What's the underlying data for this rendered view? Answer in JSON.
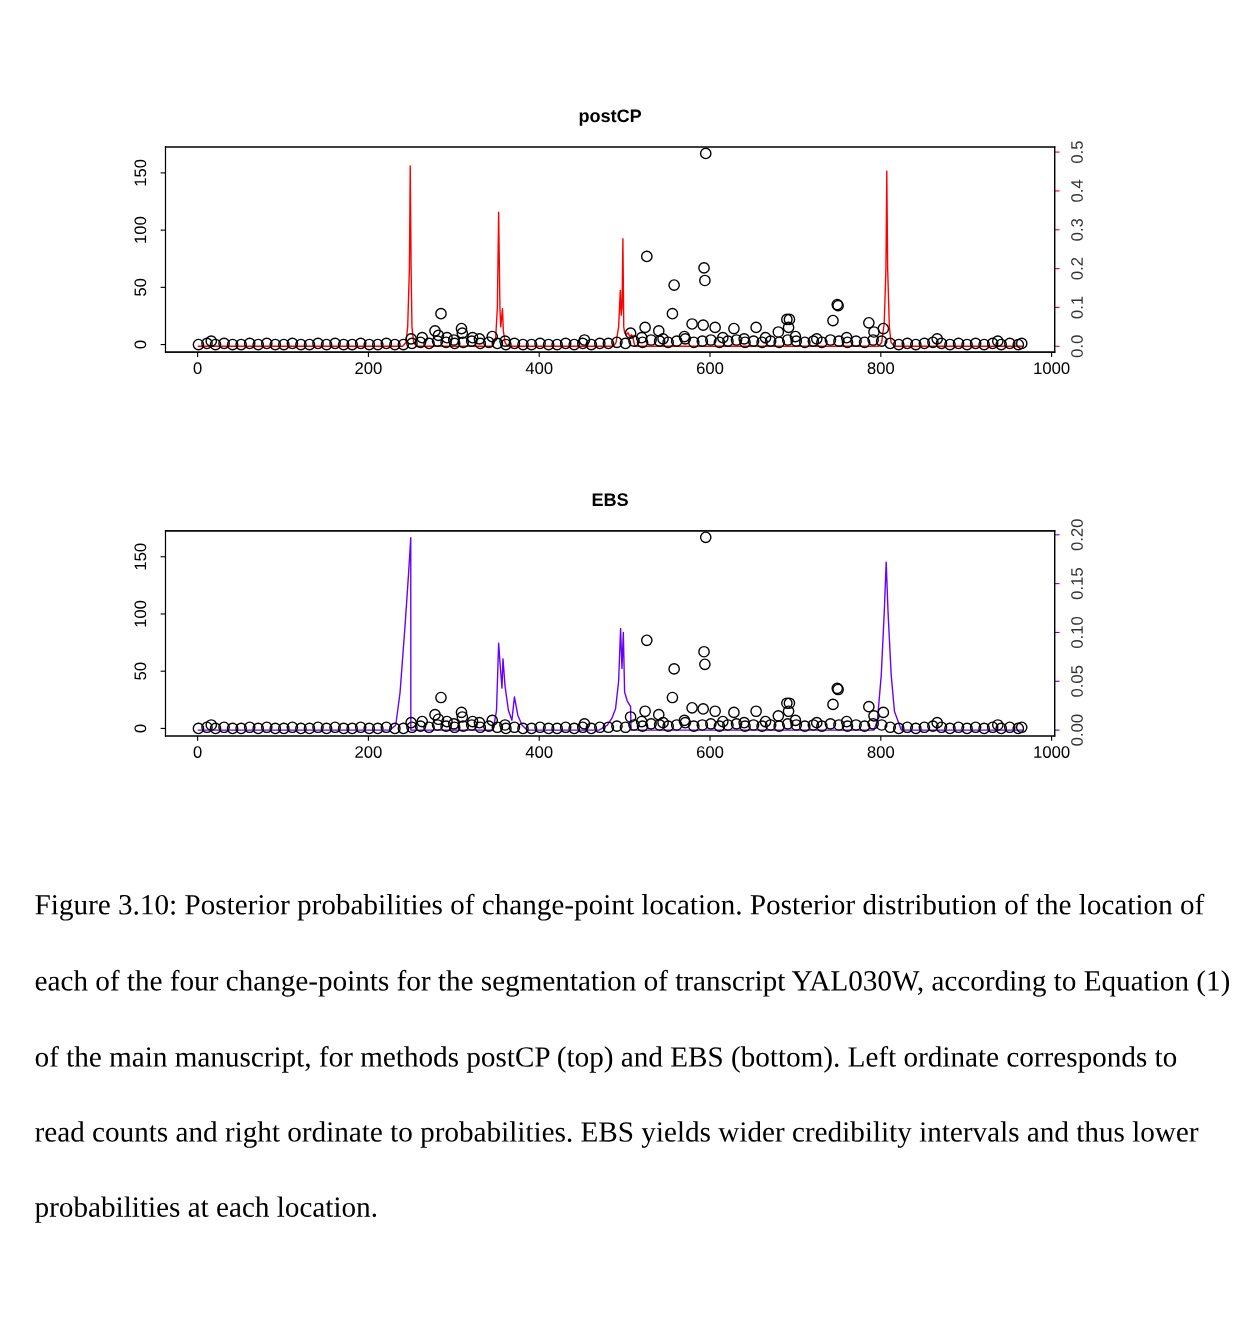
{
  "chart_data": [
    {
      "type": "scatter",
      "title": "postCP",
      "xlim": [
        -37.6,
        1003.6
      ],
      "xticks": [
        0,
        200,
        400,
        600,
        800,
        1000
      ],
      "ylim": [
        -6.6,
        172.6
      ],
      "yticks": [
        0,
        50,
        100,
        150
      ],
      "y2lim": [
        -0.015,
        0.513
      ],
      "y2ticks": [
        {
          "value": 0,
          "label": "0.0"
        },
        {
          "value": 0.1,
          "label": "0.1"
        },
        {
          "value": 0.2,
          "label": "0.2"
        },
        {
          "value": 0.3,
          "label": "0.3"
        },
        {
          "value": 0.4,
          "label": "0.4"
        },
        {
          "value": 0.5,
          "label": "0.5"
        }
      ],
      "grid": false,
      "legend": false,
      "series": [
        {
          "color": "#000000",
          "marker": "circle",
          "x": [
            1,
            11,
            21,
            31,
            41,
            51,
            61,
            71,
            81,
            91,
            101,
            111,
            121,
            131,
            141,
            151,
            161,
            171,
            181,
            191,
            201,
            211,
            221,
            231,
            241,
            251,
            261,
            271,
            281,
            291,
            301,
            311,
            321,
            331,
            341,
            351,
            361,
            371,
            381,
            391,
            401,
            411,
            421,
            431,
            441,
            451,
            461,
            471,
            481,
            491,
            501,
            511,
            521,
            531,
            541,
            551,
            561,
            571,
            581,
            591,
            601,
            611,
            621,
            631,
            641,
            651,
            661,
            671,
            681,
            691,
            701,
            711,
            721,
            731,
            741,
            751,
            761,
            771,
            781,
            791,
            801,
            811,
            821,
            831,
            841,
            851,
            861,
            871,
            881,
            891,
            901,
            911,
            921,
            931,
            941,
            951,
            961,
            965,
            595,
            526,
            593,
            594,
            558,
            556,
            749,
            750,
            744,
            786,
            803,
            690,
            693,
            692,
            579,
            592,
            654,
            524,
            606,
            540,
            628,
            680,
            792,
            507,
            285,
            278,
            282,
            309,
            310,
            345,
            263,
            250,
            292,
            322,
            453,
            16,
            866,
            937,
            300,
            330,
            360,
            520,
            545,
            570,
            615,
            640,
            665,
            700,
            725,
            760
          ],
          "values": [
            0,
            1,
            0,
            1,
            0,
            0,
            1,
            0,
            1,
            0,
            0,
            1,
            0,
            0,
            1,
            0,
            1,
            0,
            0,
            1,
            0,
            0,
            1,
            0,
            0,
            1,
            2,
            1,
            3,
            2,
            1,
            2,
            3,
            1,
            2,
            1,
            0,
            1,
            0,
            0,
            1,
            0,
            0,
            1,
            0,
            1,
            0,
            1,
            1,
            2,
            1,
            3,
            2,
            4,
            3,
            2,
            3,
            5,
            2,
            3,
            4,
            2,
            3,
            4,
            2,
            3,
            2,
            3,
            2,
            4,
            3,
            2,
            3,
            2,
            4,
            3,
            2,
            3,
            2,
            4,
            3,
            1,
            0,
            1,
            0,
            1,
            2,
            1,
            0,
            1,
            0,
            1,
            0,
            1,
            0,
            1,
            0,
            1,
            167,
            77,
            67,
            56,
            52,
            27,
            35,
            34,
            21,
            19,
            14,
            22,
            22,
            15,
            18,
            17,
            15,
            15,
            15,
            12,
            14,
            11,
            11,
            10,
            27,
            12,
            8,
            14,
            10,
            7,
            6,
            5,
            6,
            6,
            4,
            3,
            5,
            3,
            4,
            5,
            3,
            6,
            5,
            7,
            6,
            5,
            6,
            7,
            5,
            6
          ]
        },
        {
          "type": "line",
          "axis": "y2",
          "color": "#ff0000",
          "line_style": "solid",
          "x": [
            1,
            240,
            244,
            246,
            248,
            249,
            250,
            251,
            253,
            256,
            345,
            349,
            351,
            352.5,
            354,
            355,
            357,
            358,
            360,
            363,
            487,
            490,
            493,
            495,
            496,
            497,
            498,
            499,
            500,
            502,
            504,
            506,
            508,
            510,
            512,
            797,
            801,
            804,
            806,
            807,
            808,
            810,
            812,
            816,
            965
          ],
          "values": [
            0,
            0,
            0.01,
            0.05,
            0.2,
            0.464,
            0.2,
            0.05,
            0.01,
            0,
            0,
            0.02,
            0.1,
            0.345,
            0.1,
            0.05,
            0.097,
            0.04,
            0.01,
            0,
            0,
            0.01,
            0.05,
            0.144,
            0.08,
            0.1,
            0.277,
            0.05,
            0.035,
            0.03,
            0.035,
            0.025,
            0.03,
            0.02,
            0,
            0,
            0.01,
            0.06,
            0.2,
            0.451,
            0.2,
            0.05,
            0.01,
            0,
            0
          ]
        }
      ]
    },
    {
      "type": "scatter",
      "title": "EBS",
      "xlim": [
        -37.6,
        1003.6
      ],
      "xticks": [
        0,
        200,
        400,
        600,
        800,
        1000
      ],
      "ylim": [
        -6.6,
        172.6
      ],
      "yticks": [
        0,
        50,
        100,
        150
      ],
      "y2lim": [
        -0.006,
        0.204
      ],
      "y2ticks": [
        {
          "value": 0,
          "label": "0.00"
        },
        {
          "value": 0.05,
          "label": "0.05"
        },
        {
          "value": 0.1,
          "label": "0.10"
        },
        {
          "value": 0.15,
          "label": "0.15"
        },
        {
          "value": 0.2,
          "label": "0.20"
        }
      ],
      "grid": false,
      "legend": false,
      "annotations": [
        "Figure 3.10: Posterior probabilities of change-point location. Posterior distribution of the location of each of the four change-points for the segmentation of transcript YAL030W, according to Equation (1) of the main manuscript, for methods postCP (top) and EBS (bottom). Left ordinate corresponds to read counts and right ordinate to probabilities. EBS yields wider credibility intervals and thus lower probabilities at each location."
      ],
      "series": [
        {
          "color": "#000000",
          "marker": "circle",
          "x": [
            1,
            11,
            21,
            31,
            41,
            51,
            61,
            71,
            81,
            91,
            101,
            111,
            121,
            131,
            141,
            151,
            161,
            171,
            181,
            191,
            201,
            211,
            221,
            231,
            241,
            251,
            261,
            271,
            281,
            291,
            301,
            311,
            321,
            331,
            341,
            351,
            361,
            371,
            381,
            391,
            401,
            411,
            421,
            431,
            441,
            451,
            461,
            471,
            481,
            491,
            501,
            511,
            521,
            531,
            541,
            551,
            561,
            571,
            581,
            591,
            601,
            611,
            621,
            631,
            641,
            651,
            661,
            671,
            681,
            691,
            701,
            711,
            721,
            731,
            741,
            751,
            761,
            771,
            781,
            791,
            801,
            811,
            821,
            831,
            841,
            851,
            861,
            871,
            881,
            891,
            901,
            911,
            921,
            931,
            941,
            951,
            961,
            965,
            595,
            526,
            593,
            594,
            558,
            556,
            749,
            750,
            744,
            786,
            803,
            690,
            693,
            692,
            579,
            592,
            654,
            524,
            606,
            540,
            628,
            680,
            792,
            507,
            285,
            278,
            282,
            309,
            310,
            345,
            263,
            250,
            292,
            322,
            453,
            16,
            866,
            937,
            300,
            330,
            360,
            520,
            545,
            570,
            615,
            640,
            665,
            700,
            725,
            760
          ],
          "values": [
            0,
            1,
            0,
            1,
            0,
            0,
            1,
            0,
            1,
            0,
            0,
            1,
            0,
            0,
            1,
            0,
            1,
            0,
            0,
            1,
            0,
            0,
            1,
            0,
            0,
            1,
            2,
            1,
            3,
            2,
            1,
            2,
            3,
            1,
            2,
            1,
            0,
            1,
            0,
            0,
            1,
            0,
            0,
            1,
            0,
            1,
            0,
            1,
            1,
            2,
            1,
            3,
            2,
            4,
            3,
            2,
            3,
            5,
            2,
            3,
            4,
            2,
            3,
            4,
            2,
            3,
            2,
            3,
            2,
            4,
            3,
            2,
            3,
            2,
            4,
            3,
            2,
            3,
            2,
            4,
            3,
            1,
            0,
            1,
            0,
            1,
            2,
            1,
            0,
            1,
            0,
            1,
            0,
            1,
            0,
            1,
            0,
            1,
            167,
            77,
            67,
            56,
            52,
            27,
            35,
            34,
            21,
            19,
            14,
            22,
            22,
            15,
            18,
            17,
            15,
            15,
            15,
            12,
            14,
            11,
            11,
            10,
            27,
            12,
            8,
            14,
            10,
            7,
            6,
            5,
            6,
            6,
            4,
            3,
            5,
            3,
            4,
            5,
            3,
            6,
            5,
            7,
            6,
            5,
            6,
            7,
            5,
            6
          ]
        },
        {
          "type": "line",
          "axis": "y2",
          "color": "#6600ff",
          "line_style": "solid",
          "x": [
            1,
            225,
            232,
            237,
            243,
            247,
            249.6,
            249.7,
            252,
            346,
            350,
            352.5,
            354,
            356.4,
            357.6,
            360,
            364,
            368,
            371,
            375,
            380,
            385.8,
            470,
            479.7,
            485,
            489.4,
            493,
            495.3,
            496.9,
            498.5,
            500,
            503,
            507,
            507.5,
            792,
            796,
            800.5,
            804,
            806.3,
            808.5,
            812.2,
            816,
            824,
            965
          ],
          "values": [
            0,
            0,
            0.005,
            0.038,
            0.108,
            0.16,
            0.197,
            0,
            0,
            0,
            0.02,
            0.089,
            0.07,
            0.043,
            0.073,
            0.045,
            0.02,
            0.01,
            0.034,
            0.015,
            0.005,
            0,
            0,
            0.005,
            0.012,
            0.022,
            0.05,
            0.104,
            0.063,
            0.1,
            0.039,
            0.03,
            0.024,
            0,
            0,
            0.01,
            0.056,
            0.12,
            0.172,
            0.12,
            0.056,
            0.019,
            0,
            0
          ]
        }
      ]
    }
  ]
}
